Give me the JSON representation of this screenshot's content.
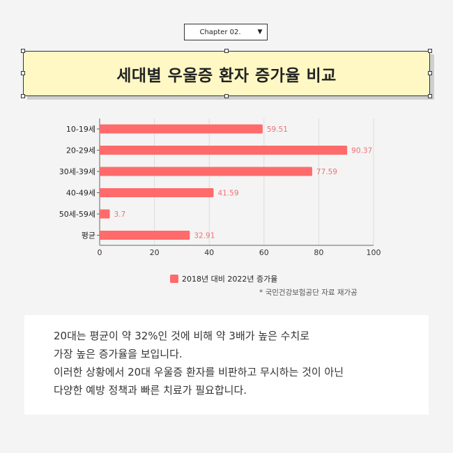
{
  "chapter": {
    "label": "Chapter 02.",
    "arrow_icon": "caret-down-icon"
  },
  "title": "세대별 우울증 환자 증가율 비교",
  "chart_data": {
    "type": "bar",
    "orientation": "horizontal",
    "categories": [
      "10-19세",
      "20-29세",
      "30세-39세",
      "40-49세",
      "50세-59세",
      "평균"
    ],
    "series": [
      {
        "name": "2018년 대비 2022년 증가율",
        "values": [
          59.51,
          90.37,
          77.59,
          41.59,
          3.7,
          32.91
        ],
        "color": "#ff6b6b"
      }
    ],
    "xlim": [
      0,
      100
    ],
    "xticks": [
      0,
      20,
      40,
      60,
      80,
      100
    ],
    "grid": true,
    "legend": "bottom",
    "data_labels": [
      "59.51",
      "90.37",
      "77.59",
      "41.59",
      "3.7",
      "32.91"
    ]
  },
  "source_note": "* 국민건강보험공단 자료 재가공",
  "body_text": [
    "20대는 평균이 약 32%인 것에 비해 약 3배가 높은 수치로",
    "가장 높은 증가율을 보입니다.",
    "이러한 상황에서 20대 우울증 환자를 비판하고 무시하는 것이 아닌",
    "다양한 예방 정책과 빠른 치료가 필요합니다."
  ]
}
